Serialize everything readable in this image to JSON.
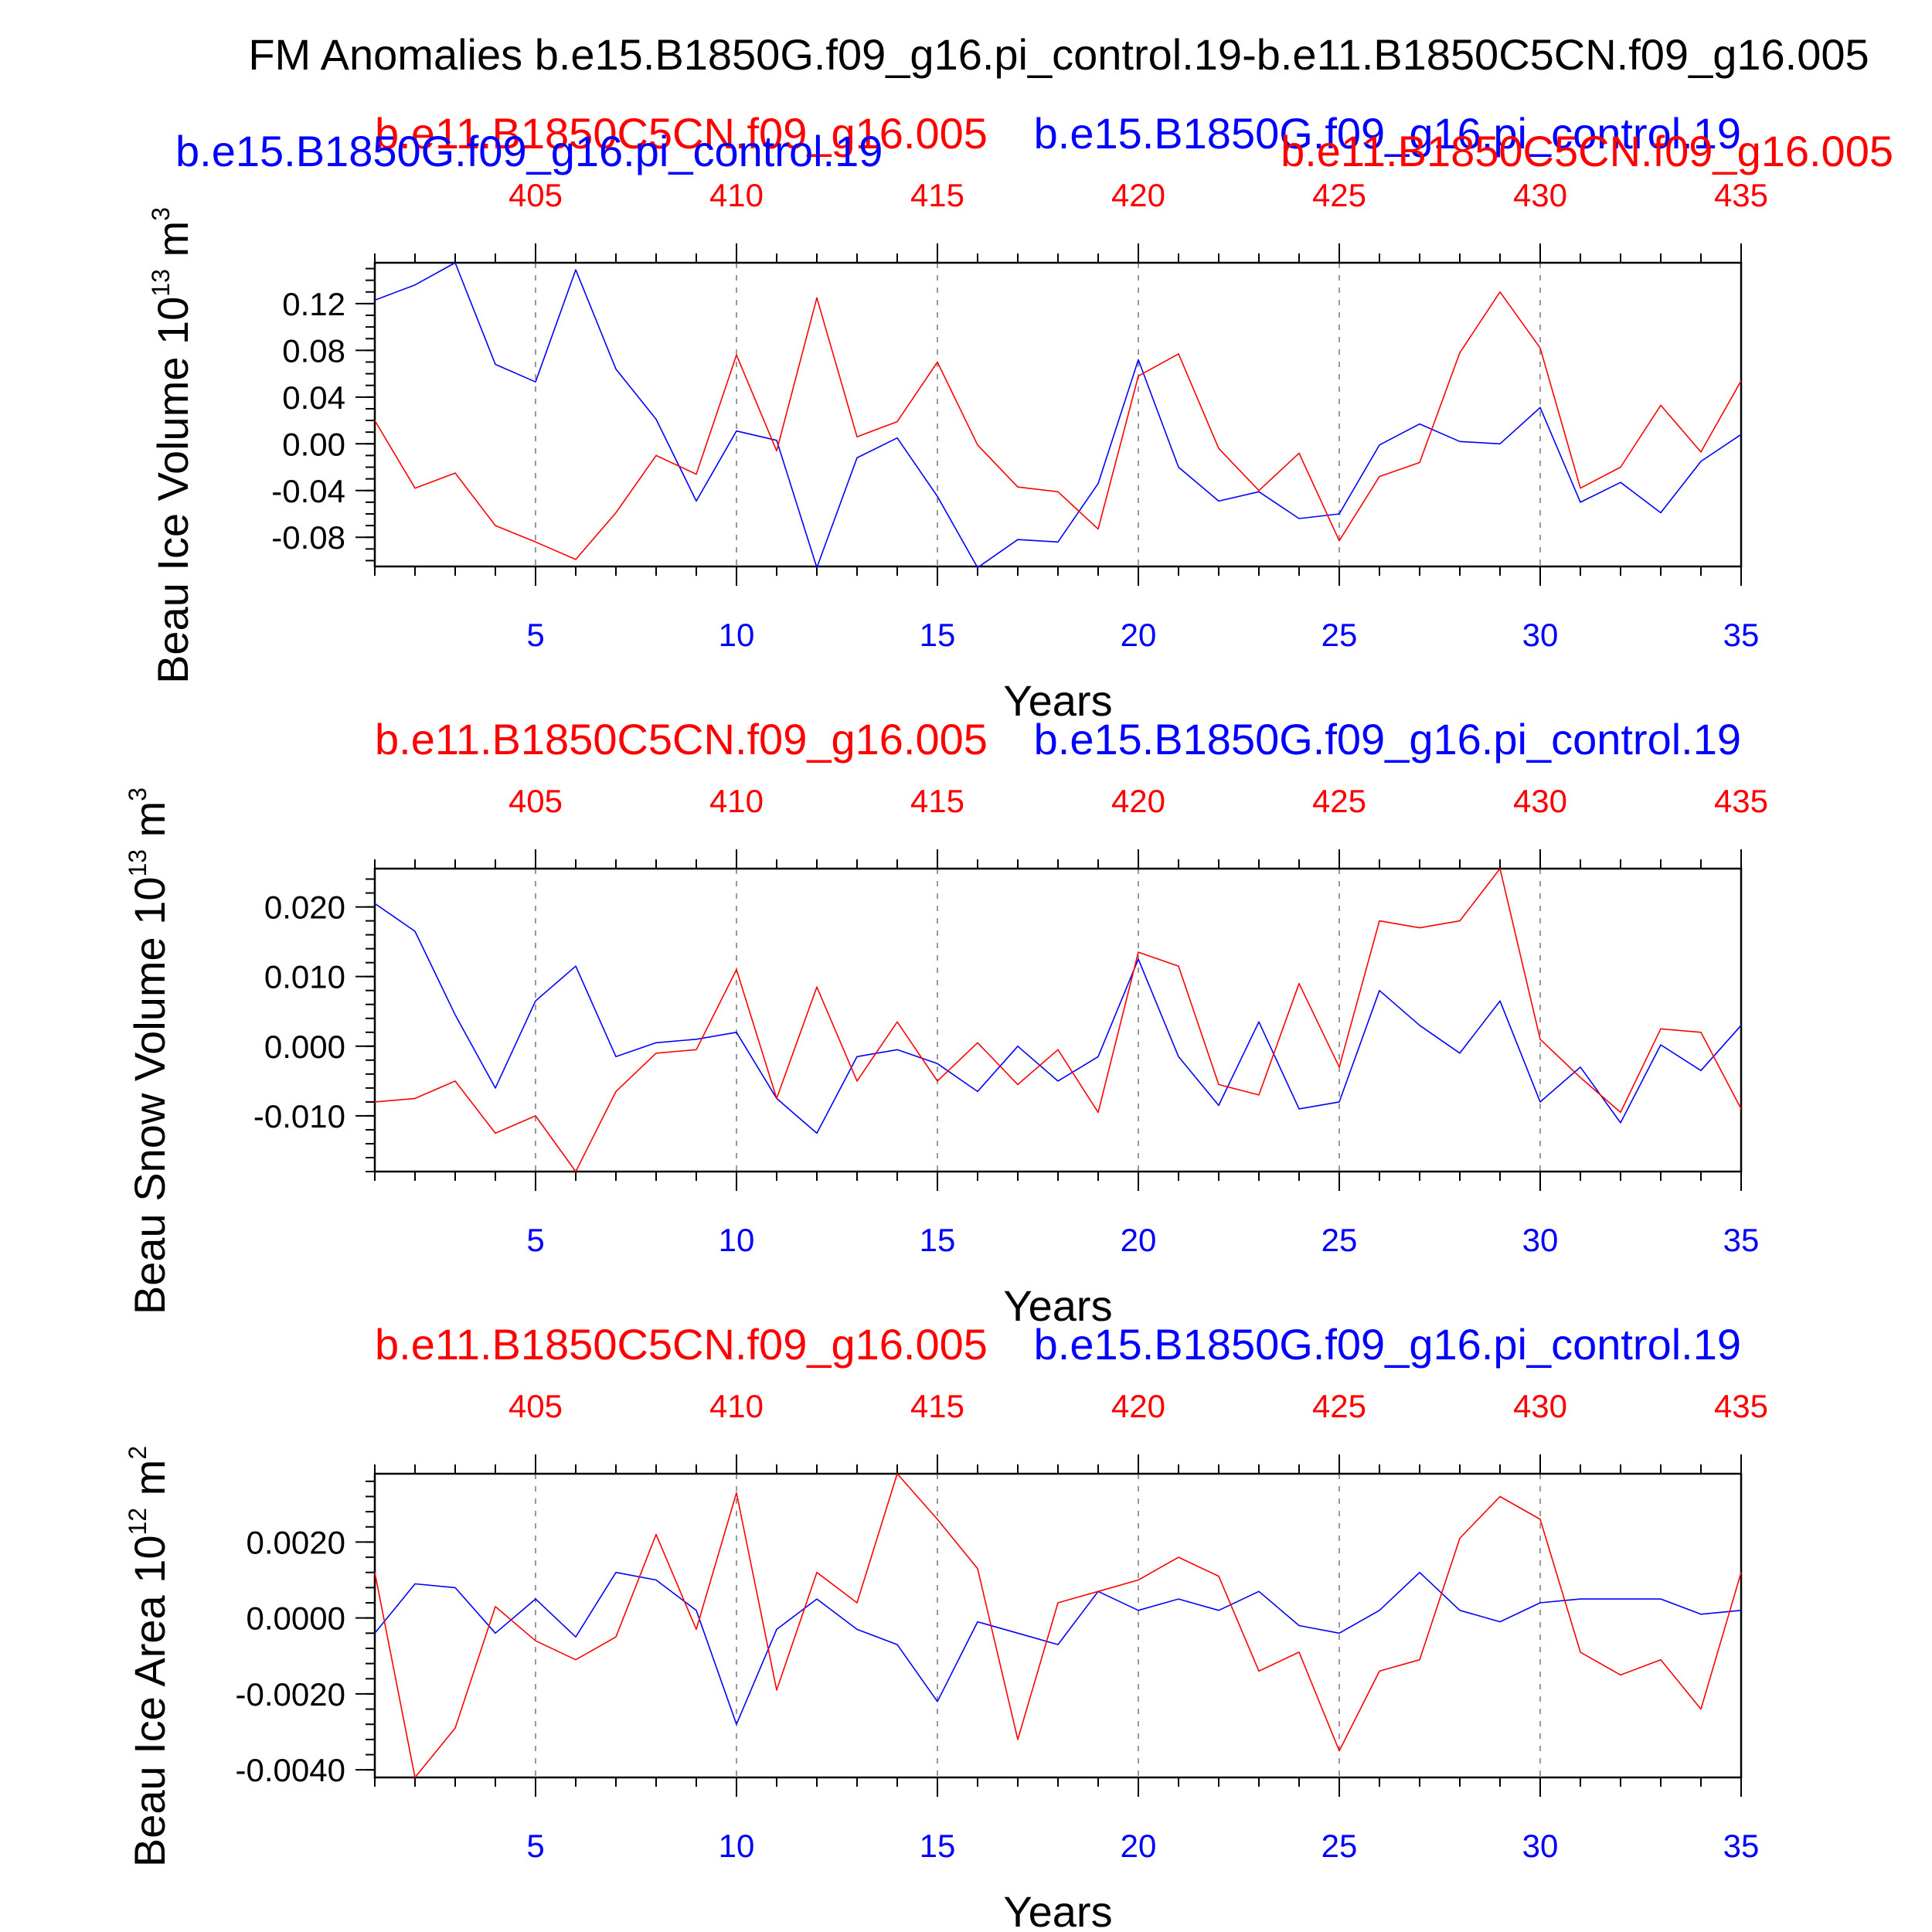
{
  "colors": {
    "run_a": "#0000ff",
    "run_b": "#ff0000",
    "axis": "#000000",
    "grid": "#9a9a9a"
  },
  "main_title": "FM Anomalies b.e15.B1850G.f09_g16.pi_control.19-b.e11.B1850C5CN.f09_g16.005",
  "chart_data": [
    {
      "type": "line",
      "ylabel": "Beau Ice Volume 10",
      "ylabel_exp": "13",
      "ylabel_unit": " m",
      "ylabel_unit_exp": "3",
      "xlabel": "Years",
      "xlim": [
        1,
        35
      ],
      "ylim": [
        -0.105,
        0.155
      ],
      "yticks": [
        {
          "v": 0.12,
          "label": "0.12"
        },
        {
          "v": 0.08,
          "label": "0.08"
        },
        {
          "v": 0.04,
          "label": "0.04"
        },
        {
          "v": 0.0,
          "label": "0.00"
        },
        {
          "v": -0.04,
          "label": "-0.04"
        },
        {
          "v": -0.08,
          "label": "-0.08"
        }
      ],
      "yminor_step": 0.01,
      "bottom_ticks": [
        {
          "v": 5,
          "label": "5"
        },
        {
          "v": 10,
          "label": "10"
        },
        {
          "v": 15,
          "label": "15"
        },
        {
          "v": 20,
          "label": "20"
        },
        {
          "v": 25,
          "label": "25"
        },
        {
          "v": 30,
          "label": "30"
        },
        {
          "v": 35,
          "label": "35"
        }
      ],
      "top_ticks": [
        {
          "v": 5,
          "label": "405"
        },
        {
          "v": 10,
          "label": "410"
        },
        {
          "v": 15,
          "label": "415"
        },
        {
          "v": 20,
          "label": "420"
        },
        {
          "v": 25,
          "label": "425"
        },
        {
          "v": 30,
          "label": "430"
        },
        {
          "v": 35,
          "label": "435"
        }
      ],
      "gridlines": [
        5,
        10,
        15,
        20,
        25,
        30
      ],
      "legend": [
        {
          "text": "b.e11.B1850C5CN.f09_g16.005",
          "color": "#ff0000",
          "placement": "top-left-upper"
        },
        {
          "text": "b.e15.B1850G.f09_g16.pi_control.19",
          "color": "#0000ff",
          "placement": "top-right-upper"
        },
        {
          "text": "b.e15.B1850G.f09_g16.pi_control.19",
          "color": "#0000ff",
          "placement": "top-left-lower"
        },
        {
          "text": "b.e11.B1850C5CN.f09_g16.005",
          "color": "#ff0000",
          "placement": "top-right-lower"
        }
      ],
      "x": [
        1,
        2,
        3,
        4,
        5,
        6,
        7,
        8,
        9,
        10,
        11,
        12,
        13,
        14,
        15,
        16,
        17,
        18,
        19,
        20,
        21,
        22,
        23,
        24,
        25,
        26,
        27,
        28,
        29,
        30,
        31,
        32,
        33,
        34,
        35
      ],
      "series": [
        {
          "name": "b.e15.B1850G.f09_g16.pi_control.19",
          "color": "#0000ff",
          "values": [
            0.123,
            0.136,
            0.155,
            0.068,
            0.053,
            0.149,
            0.064,
            0.021,
            -0.049,
            0.011,
            0.003,
            -0.106,
            -0.012,
            0.005,
            -0.045,
            -0.106,
            -0.082,
            -0.084,
            -0.034,
            0.072,
            -0.02,
            -0.049,
            -0.041,
            -0.064,
            -0.06,
            -0.001,
            0.017,
            0.002,
            0.0,
            0.031,
            -0.05,
            -0.033,
            -0.059,
            -0.015,
            0.008
          ]
        },
        {
          "name": "b.e11.B1850C5CN.f09_g16.005",
          "color": "#ff0000",
          "values": [
            0.02,
            -0.038,
            -0.025,
            -0.07,
            -0.084,
            -0.099,
            -0.059,
            -0.01,
            -0.026,
            0.076,
            -0.006,
            0.125,
            0.006,
            0.019,
            0.07,
            -0.001,
            -0.037,
            -0.041,
            -0.073,
            0.058,
            0.077,
            -0.004,
            -0.04,
            -0.008,
            -0.083,
            -0.028,
            -0.016,
            0.078,
            0.13,
            0.082,
            -0.038,
            -0.02,
            0.033,
            -0.007,
            0.054
          ]
        }
      ]
    },
    {
      "type": "line",
      "ylabel": "Beau Snow Volume 10",
      "ylabel_exp": "13",
      "ylabel_unit": " m",
      "ylabel_unit_exp": "3",
      "xlabel": "Years",
      "xlim": [
        1,
        35
      ],
      "ylim": [
        -0.018,
        0.0255
      ],
      "yticks": [
        {
          "v": 0.02,
          "label": "0.020"
        },
        {
          "v": 0.01,
          "label": "0.010"
        },
        {
          "v": 0.0,
          "label": "0.000"
        },
        {
          "v": -0.01,
          "label": "-0.010"
        }
      ],
      "yminor_step": 0.002,
      "bottom_ticks": [
        {
          "v": 5,
          "label": "5"
        },
        {
          "v": 10,
          "label": "10"
        },
        {
          "v": 15,
          "label": "15"
        },
        {
          "v": 20,
          "label": "20"
        },
        {
          "v": 25,
          "label": "25"
        },
        {
          "v": 30,
          "label": "30"
        },
        {
          "v": 35,
          "label": "35"
        }
      ],
      "top_ticks": [
        {
          "v": 5,
          "label": "405"
        },
        {
          "v": 10,
          "label": "410"
        },
        {
          "v": 15,
          "label": "415"
        },
        {
          "v": 20,
          "label": "420"
        },
        {
          "v": 25,
          "label": "425"
        },
        {
          "v": 30,
          "label": "430"
        },
        {
          "v": 35,
          "label": "435"
        }
      ],
      "gridlines": [
        5,
        10,
        15,
        20,
        25,
        30
      ],
      "legend": [
        {
          "text": "b.e11.B1850C5CN.f09_g16.005",
          "color": "#ff0000",
          "placement": "top-left"
        },
        {
          "text": "b.e15.B1850G.f09_g16.pi_control.19",
          "color": "#0000ff",
          "placement": "top-right"
        }
      ],
      "x": [
        1,
        2,
        3,
        4,
        5,
        6,
        7,
        8,
        9,
        10,
        11,
        12,
        13,
        14,
        15,
        16,
        17,
        18,
        19,
        20,
        21,
        22,
        23,
        24,
        25,
        26,
        27,
        28,
        29,
        30,
        31,
        32,
        33,
        34,
        35
      ],
      "series": [
        {
          "name": "b.e15.B1850G.f09_g16.pi_control.19",
          "color": "#0000ff",
          "values": [
            0.0205,
            0.0165,
            0.0045,
            -0.006,
            0.0065,
            0.0115,
            -0.0015,
            0.0005,
            0.001,
            0.002,
            -0.0075,
            -0.0125,
            -0.0015,
            -0.0005,
            -0.0025,
            -0.0065,
            0.0,
            -0.005,
            -0.0015,
            0.0125,
            -0.0015,
            -0.0085,
            0.0035,
            -0.009,
            -0.008,
            0.008,
            0.003,
            -0.001,
            0.0065,
            -0.008,
            -0.003,
            -0.011,
            0.0002,
            -0.0035,
            0.003
          ]
        },
        {
          "name": "b.e11.B1850C5CN.f09_g16.005",
          "color": "#ff0000",
          "values": [
            -0.008,
            -0.0075,
            -0.005,
            -0.0125,
            -0.01,
            -0.018,
            -0.0065,
            -0.001,
            -0.0005,
            0.011,
            -0.0075,
            0.0085,
            -0.005,
            0.0035,
            -0.005,
            0.0005,
            -0.0055,
            -0.0005,
            -0.0095,
            0.0135,
            0.0115,
            -0.0055,
            -0.007,
            0.009,
            -0.003,
            0.018,
            0.017,
            0.018,
            0.0255,
            0.001,
            -0.0045,
            -0.0095,
            0.0025,
            0.002,
            -0.009
          ]
        }
      ]
    },
    {
      "type": "line",
      "ylabel": "Beau Ice Area 10",
      "ylabel_exp": "12",
      "ylabel_unit": " m",
      "ylabel_unit_exp": "2",
      "xlabel": "Years",
      "xlim": [
        1,
        35
      ],
      "ylim": [
        -0.0042,
        0.0038
      ],
      "yticks": [
        {
          "v": 0.002,
          "label": "0.0020"
        },
        {
          "v": 0.0,
          "label": "0.0000"
        },
        {
          "v": -0.002,
          "label": "-0.0020"
        },
        {
          "v": -0.004,
          "label": "-0.0040"
        }
      ],
      "yminor_step": 0.0004,
      "bottom_ticks": [
        {
          "v": 5,
          "label": "5"
        },
        {
          "v": 10,
          "label": "10"
        },
        {
          "v": 15,
          "label": "15"
        },
        {
          "v": 20,
          "label": "20"
        },
        {
          "v": 25,
          "label": "25"
        },
        {
          "v": 30,
          "label": "30"
        },
        {
          "v": 35,
          "label": "35"
        }
      ],
      "top_ticks": [
        {
          "v": 5,
          "label": "405"
        },
        {
          "v": 10,
          "label": "410"
        },
        {
          "v": 15,
          "label": "415"
        },
        {
          "v": 20,
          "label": "420"
        },
        {
          "v": 25,
          "label": "425"
        },
        {
          "v": 30,
          "label": "430"
        },
        {
          "v": 35,
          "label": "435"
        }
      ],
      "gridlines": [
        5,
        10,
        15,
        20,
        25,
        30
      ],
      "legend": [
        {
          "text": "b.e11.B1850C5CN.f09_g16.005",
          "color": "#ff0000",
          "placement": "top-left"
        },
        {
          "text": "b.e15.B1850G.f09_g16.pi_control.19",
          "color": "#0000ff",
          "placement": "top-right"
        }
      ],
      "x": [
        1,
        2,
        3,
        4,
        5,
        6,
        7,
        8,
        9,
        10,
        11,
        12,
        13,
        14,
        15,
        16,
        17,
        18,
        19,
        20,
        21,
        22,
        23,
        24,
        25,
        26,
        27,
        28,
        29,
        30,
        31,
        32,
        33,
        34,
        35
      ],
      "series": [
        {
          "name": "b.e15.B1850G.f09_g16.pi_control.19",
          "color": "#0000ff",
          "values": [
            -0.0004,
            0.0009,
            0.0008,
            -0.0004,
            0.0005,
            -0.0005,
            0.0012,
            0.001,
            0.0002,
            -0.0028,
            -0.0003,
            0.0005,
            -0.0003,
            -0.0007,
            -0.0022,
            -0.0001,
            -0.0004,
            -0.0007,
            0.0007,
            0.0002,
            0.0005,
            0.0002,
            0.0007,
            -0.0002,
            -0.0004,
            0.0002,
            0.0012,
            0.0002,
            -0.0001,
            0.0004,
            0.0005,
            0.0005,
            0.0005,
            0.0001,
            0.0002
          ]
        },
        {
          "name": "b.e11.B1850C5CN.f09_g16.005",
          "color": "#ff0000",
          "values": [
            0.0012,
            -0.0042,
            -0.0029,
            0.0003,
            -0.0006,
            -0.0011,
            -0.0005,
            0.0022,
            -0.0003,
            0.0033,
            -0.0019,
            0.0012,
            0.0004,
            0.0038,
            0.0026,
            0.0013,
            -0.0032,
            0.0004,
            0.0007,
            0.001,
            0.0016,
            0.0011,
            -0.0014,
            -0.0009,
            -0.0035,
            -0.0014,
            -0.0011,
            0.0021,
            0.0032,
            0.0026,
            -0.0009,
            -0.0015,
            -0.0011,
            -0.0024,
            0.0012
          ]
        }
      ]
    }
  ]
}
